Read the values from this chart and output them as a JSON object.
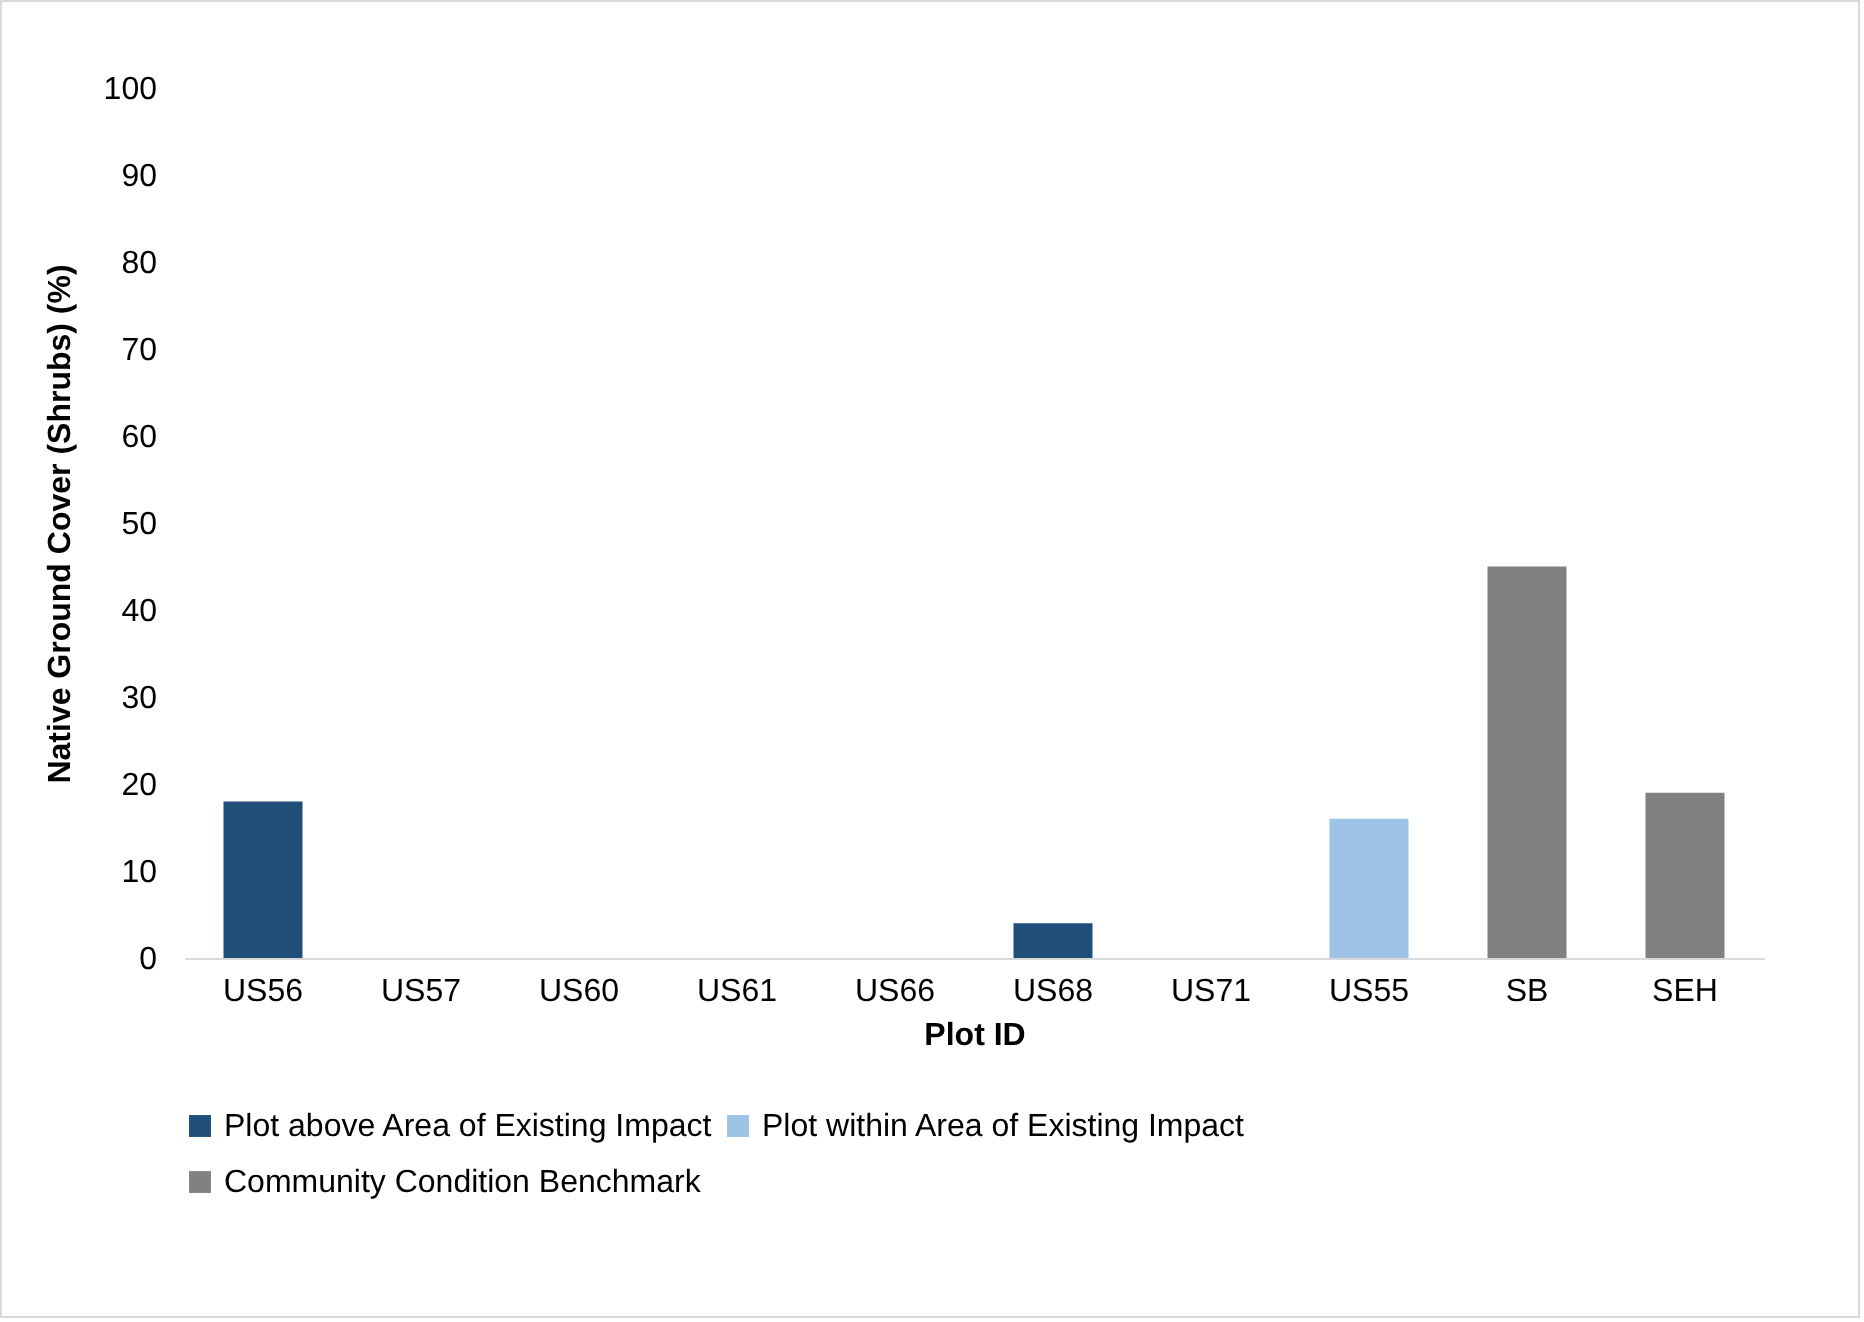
{
  "chart_data": {
    "type": "bar",
    "xlabel": "Plot ID",
    "ylabel": "Native Ground Cover (Shrubs) (%)",
    "categories": [
      "US56",
      "US57",
      "US60",
      "US61",
      "US66",
      "US68",
      "US71",
      "US55",
      "SB",
      "SEH"
    ],
    "series": [
      {
        "name": "Plot above Area of Existing Impact",
        "color": "#1f4e79",
        "values": [
          18,
          0,
          0,
          0,
          0,
          4,
          0,
          null,
          null,
          null
        ]
      },
      {
        "name": "Plot within Area of Existing Impact",
        "color": "#9dc3e6",
        "values": [
          null,
          null,
          null,
          null,
          null,
          null,
          null,
          16,
          null,
          null
        ]
      },
      {
        "name": "Community Condition Benchmark",
        "color": "#808080",
        "values": [
          null,
          null,
          null,
          null,
          null,
          null,
          null,
          null,
          45,
          19
        ]
      }
    ],
    "ylim": [
      0,
      100
    ],
    "yticks": [
      0,
      10,
      20,
      30,
      40,
      50,
      60,
      70,
      80,
      90,
      100
    ],
    "grid": false,
    "legend": "bottom"
  }
}
